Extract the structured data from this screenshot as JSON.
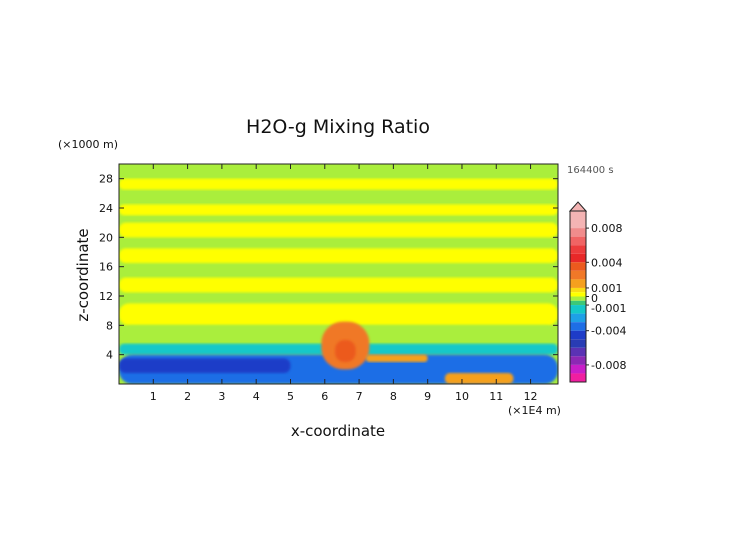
{
  "chart_data": {
    "type": "heatmap",
    "title": "H2O-g Mixing Ratio",
    "xlabel": "x-coordinate",
    "ylabel": "z-coordinate",
    "x_unit": "(×1E4 m)",
    "y_unit": "(×1000 m)",
    "time_label": "164400 s",
    "xlim": [
      0,
      12.8
    ],
    "ylim": [
      0,
      30
    ],
    "x_ticks": [
      1,
      2,
      3,
      4,
      5,
      6,
      7,
      8,
      9,
      10,
      11,
      12
    ],
    "y_ticks": [
      4,
      8,
      12,
      16,
      20,
      24,
      28
    ],
    "colorbar": {
      "range": [
        -0.01,
        0.01
      ],
      "tick_labels": [
        {
          "value": 0.008,
          "label": "0.008"
        },
        {
          "value": 0.004,
          "label": "0.004"
        },
        {
          "value": 0.001,
          "label": "0.001"
        },
        {
          "value": 0.0,
          "label": "0"
        },
        {
          "value": -0.001,
          "label": "-0.001"
        },
        {
          "value": -0.004,
          "label": "-0.004"
        },
        {
          "value": -0.008,
          "label": "-0.008"
        }
      ],
      "levels": [
        {
          "from": 0.008,
          "to": 0.01,
          "color": "#f4b4b4"
        },
        {
          "from": 0.007,
          "to": 0.008,
          "color": "#f08c8c"
        },
        {
          "from": 0.006,
          "to": 0.007,
          "color": "#f06464"
        },
        {
          "from": 0.005,
          "to": 0.006,
          "color": "#ec3c3c"
        },
        {
          "from": 0.004,
          "to": 0.005,
          "color": "#e82828"
        },
        {
          "from": 0.003,
          "to": 0.004,
          "color": "#ec5a1e"
        },
        {
          "from": 0.002,
          "to": 0.003,
          "color": "#f07828"
        },
        {
          "from": 0.001,
          "to": 0.002,
          "color": "#f5a01e"
        },
        {
          "from": 0.0005,
          "to": 0.001,
          "color": "#fadc14"
        },
        {
          "from": 0.0,
          "to": 0.0005,
          "color": "#ffff00"
        },
        {
          "from": -0.0005,
          "to": 0.0,
          "color": "#aaee3c"
        },
        {
          "from": -0.001,
          "to": -0.0005,
          "color": "#3cc878"
        },
        {
          "from": -0.002,
          "to": -0.001,
          "color": "#14c8c8"
        },
        {
          "from": -0.003,
          "to": -0.002,
          "color": "#1ea0e6"
        },
        {
          "from": -0.004,
          "to": -0.003,
          "color": "#1e6ee6"
        },
        {
          "from": -0.005,
          "to": -0.004,
          "color": "#1e3cc8"
        },
        {
          "from": -0.006,
          "to": -0.005,
          "color": "#283cb4"
        },
        {
          "from": -0.007,
          "to": -0.006,
          "color": "#5a32b4"
        },
        {
          "from": -0.008,
          "to": -0.007,
          "color": "#8c28b4"
        },
        {
          "from": -0.009,
          "to": -0.008,
          "color": "#c81ec8"
        },
        {
          "from": -0.01,
          "to": -0.009,
          "color": "#f01ea0"
        }
      ]
    },
    "regions": [
      {
        "name": "upper-background",
        "x": [
          0,
          12.8
        ],
        "y": [
          0,
          30
        ],
        "value": -0.0002
      },
      {
        "name": "band-z27",
        "x": [
          0,
          12.8
        ],
        "y": [
          26.5,
          28
        ],
        "value": 0.0003
      },
      {
        "name": "band-z24",
        "x": [
          0,
          12.8
        ],
        "y": [
          23,
          24.5
        ],
        "value": 0.0003
      },
      {
        "name": "band-z21",
        "x": [
          0,
          12.8
        ],
        "y": [
          20,
          22
        ],
        "value": 0.0003
      },
      {
        "name": "band-z17",
        "x": [
          0,
          12.8
        ],
        "y": [
          16.5,
          18.5
        ],
        "value": 0.0003
      },
      {
        "name": "band-z13",
        "x": [
          0,
          12.8
        ],
        "y": [
          12.5,
          14.5
        ],
        "value": 0.0003
      },
      {
        "name": "band-z8",
        "x": [
          0,
          12.8
        ],
        "y": [
          8,
          11
        ],
        "value": 0.0003
      },
      {
        "name": "low-green-band",
        "x": [
          0,
          12.8
        ],
        "y": [
          4.5,
          8
        ],
        "value": -0.0002
      },
      {
        "name": "low-cyan",
        "x": [
          0,
          12.8
        ],
        "y": [
          4,
          5.5
        ],
        "value": -0.0015
      },
      {
        "name": "surface-blue",
        "x": [
          0,
          12.8
        ],
        "y": [
          0,
          4
        ],
        "value": -0.0035
      },
      {
        "name": "surface-dark-blue",
        "x": [
          0,
          5
        ],
        "y": [
          1.5,
          3.5
        ],
        "value": -0.0045
      },
      {
        "name": "plume-orange",
        "x": [
          5.9,
          7.3
        ],
        "y": [
          2,
          8.5
        ],
        "value": 0.0025
      },
      {
        "name": "plume-core",
        "x": [
          6.3,
          6.9
        ],
        "y": [
          3,
          6
        ],
        "value": 0.0035
      },
      {
        "name": "outflow-orange",
        "x": [
          7.2,
          9
        ],
        "y": [
          3,
          4
        ],
        "value": 0.0015
      },
      {
        "name": "surface-warm",
        "x": [
          9.5,
          11.5
        ],
        "y": [
          0,
          1.5
        ],
        "value": 0.0015
      }
    ]
  }
}
